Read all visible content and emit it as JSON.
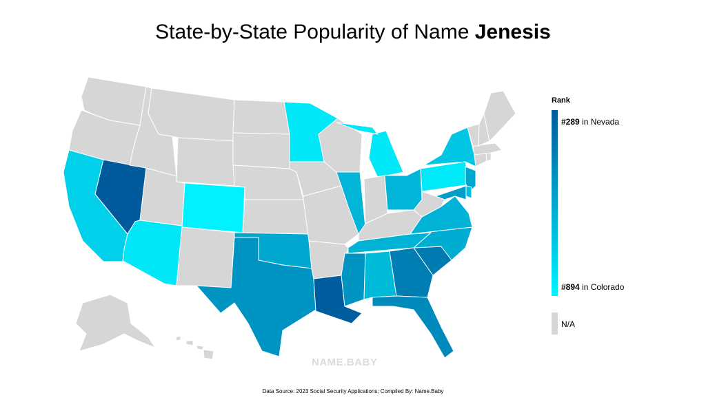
{
  "title": {
    "prefix": "State-by-State Popularity of Name ",
    "name": "Jenesis"
  },
  "legend": {
    "title": "Rank",
    "top_rank": "#289",
    "top_state": " in Nevada",
    "bottom_rank": "#894",
    "bottom_state": " in Colorado",
    "na_label": "N/A",
    "color_high": "#005a9c",
    "color_low": "#00f2ff",
    "color_na": "#d6d6d6"
  },
  "logo": "NAME.BABY",
  "source": "Data Source: 2023 Social Security Applications; Compiled By: Name.Baby",
  "states": [
    {
      "id": "WA",
      "rank": null
    },
    {
      "id": "OR",
      "rank": null
    },
    {
      "id": "CA",
      "rank": 760
    },
    {
      "id": "NV",
      "rank": 289
    },
    {
      "id": "ID",
      "rank": null
    },
    {
      "id": "MT",
      "rank": null
    },
    {
      "id": "WY",
      "rank": null
    },
    {
      "id": "UT",
      "rank": null
    },
    {
      "id": "AZ",
      "rank": 850
    },
    {
      "id": "CO",
      "rank": 894
    },
    {
      "id": "NM",
      "rank": null
    },
    {
      "id": "ND",
      "rank": null
    },
    {
      "id": "SD",
      "rank": null
    },
    {
      "id": "NE",
      "rank": null
    },
    {
      "id": "KS",
      "rank": null
    },
    {
      "id": "OK",
      "rank": 600
    },
    {
      "id": "TX",
      "rank": 520
    },
    {
      "id": "MN",
      "rank": 850
    },
    {
      "id": "IA",
      "rank": null
    },
    {
      "id": "MO",
      "rank": null
    },
    {
      "id": "AR",
      "rank": null
    },
    {
      "id": "LA",
      "rank": 300
    },
    {
      "id": "WI",
      "rank": null
    },
    {
      "id": "IL",
      "rank": 650
    },
    {
      "id": "MI",
      "rank": 850
    },
    {
      "id": "IN",
      "rank": null
    },
    {
      "id": "OH",
      "rank": 650
    },
    {
      "id": "KY",
      "rank": null
    },
    {
      "id": "TN",
      "rank": 640
    },
    {
      "id": "MS",
      "rank": 520
    },
    {
      "id": "AL",
      "rank": 670
    },
    {
      "id": "GA",
      "rank": 430
    },
    {
      "id": "FL",
      "rank": 480
    },
    {
      "id": "SC",
      "rank": 420
    },
    {
      "id": "NC",
      "rank": 620
    },
    {
      "id": "VA",
      "rank": 640
    },
    {
      "id": "WV",
      "rank": null
    },
    {
      "id": "PA",
      "rank": 860
    },
    {
      "id": "NY",
      "rank": 720
    },
    {
      "id": "NJ",
      "rank": 600
    },
    {
      "id": "DE",
      "rank": 700
    },
    {
      "id": "MD",
      "rank": 560
    },
    {
      "id": "CT",
      "rank": null
    },
    {
      "id": "RI",
      "rank": null
    },
    {
      "id": "MA",
      "rank": null
    },
    {
      "id": "VT",
      "rank": null
    },
    {
      "id": "NH",
      "rank": null
    },
    {
      "id": "ME",
      "rank": null
    },
    {
      "id": "AK",
      "rank": null
    },
    {
      "id": "HI",
      "rank": null
    }
  ]
}
